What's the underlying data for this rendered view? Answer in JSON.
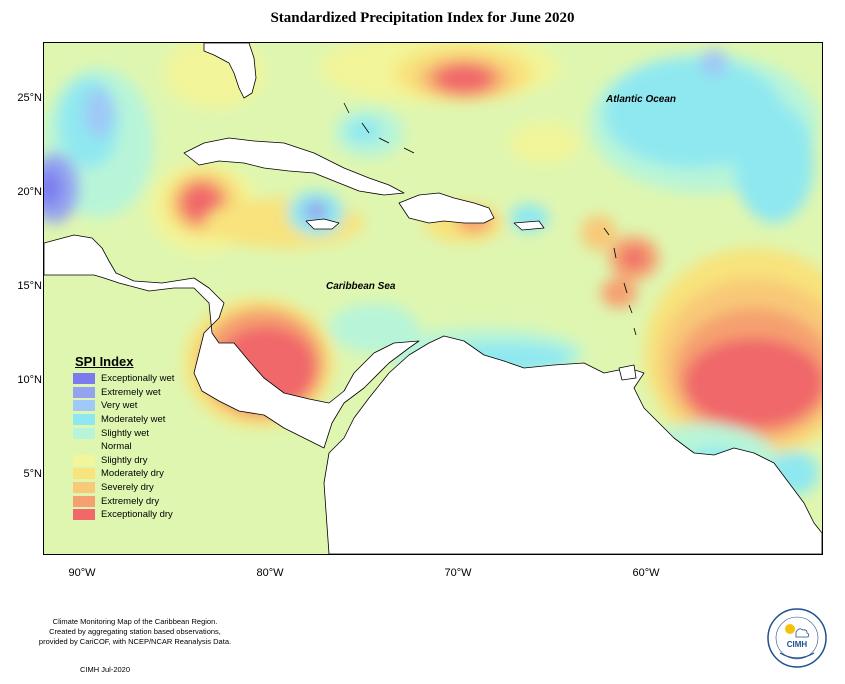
{
  "title": "Standardized Precipitation Index for June 2020",
  "latitude_labels": [
    "25°N",
    "20°N",
    "15°N",
    "10°N",
    "5°N"
  ],
  "longitude_labels": [
    "90°W",
    "80°W",
    "70°W",
    "60°W"
  ],
  "ocean_labels": {
    "atlantic": "Atlantic Ocean",
    "caribbean": "Caribbean Sea"
  },
  "legend": {
    "title": "SPI Index",
    "items": [
      {
        "label": "Exceptionally wet",
        "color": "#7b7bef"
      },
      {
        "label": "Extremely wet",
        "color": "#94a3ef"
      },
      {
        "label": "Very wet",
        "color": "#9fc9f7"
      },
      {
        "label": "Moderately wet",
        "color": "#8fe8f0"
      },
      {
        "label": "Slightly wet",
        "color": "#b8f5d8"
      },
      {
        "label": "Normal",
        "color": "#dff6b0"
      },
      {
        "label": "Slightly dry",
        "color": "#f2f59a"
      },
      {
        "label": "Moderately dry",
        "color": "#f8e37c"
      },
      {
        "label": "Severely dry",
        "color": "#f8c978"
      },
      {
        "label": "Extremely dry",
        "color": "#f5a070"
      },
      {
        "label": "Exceptionally dry",
        "color": "#f0686a"
      }
    ]
  },
  "credits": {
    "lines": [
      "Climate Monitoring Map of the Caribbean Region.",
      "Created by aggregating station based observations,",
      "provided by CariCOF, with NCEP/NCAR Reanalysis Data."
    ],
    "date": "CIMH Jul-2020"
  },
  "logo": {
    "text": "CIMH",
    "icon": "cimh-logo-icon"
  }
}
